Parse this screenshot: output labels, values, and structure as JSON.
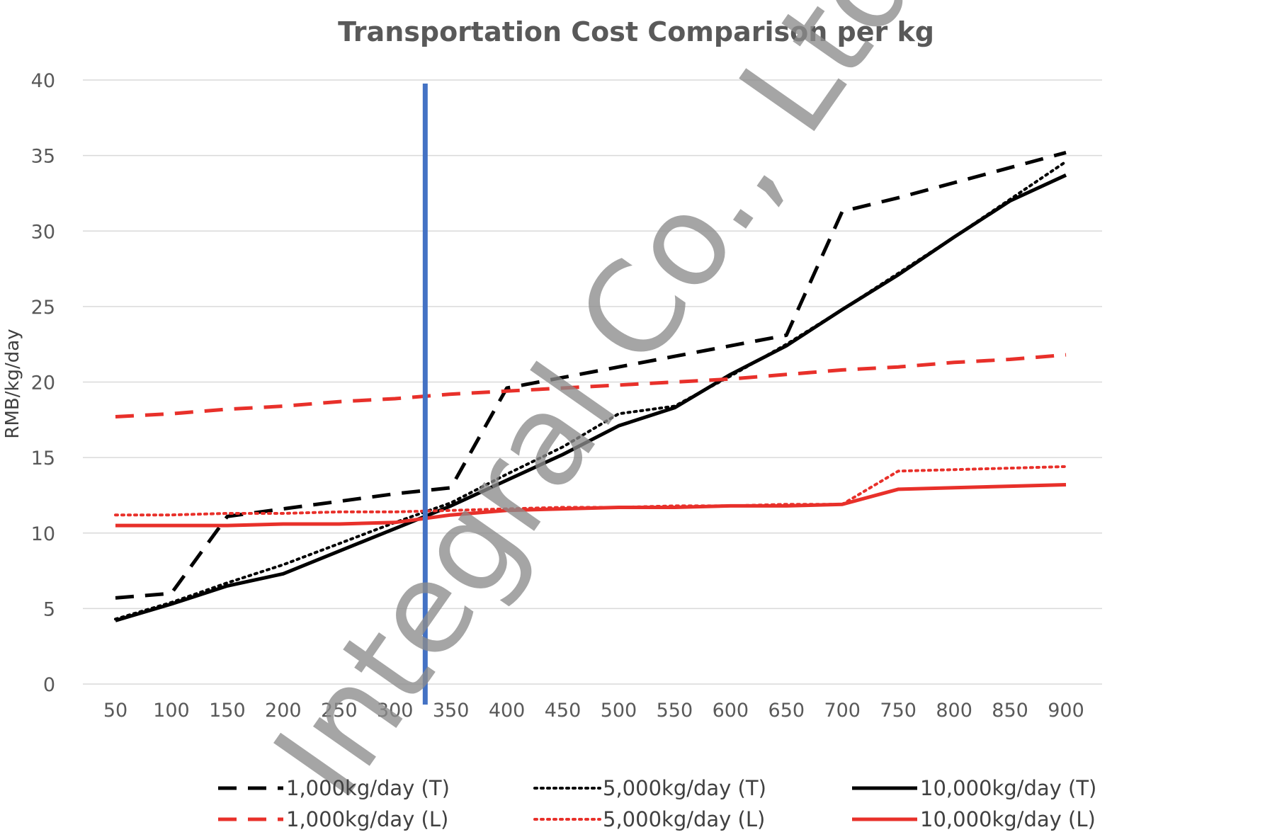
{
  "chart_data": {
    "type": "line",
    "title": "Transportation Cost Comparison per kg",
    "xlabel": "",
    "ylabel": "RMB/kg/day",
    "ylim": [
      0,
      40
    ],
    "yticks": [
      0,
      5,
      10,
      15,
      20,
      25,
      30,
      35,
      40
    ],
    "categories": [
      "50",
      "100",
      "150",
      "200",
      "250",
      "300",
      "350",
      "400",
      "450",
      "500",
      "550",
      "600",
      "650",
      "700",
      "750",
      "800",
      "850",
      "900"
    ],
    "grid": true,
    "legend_position": "bottom",
    "vertical_marker_x": 327,
    "vertical_marker_color": "#4472c4",
    "watermark": "Integral Co., Ltd.",
    "series": [
      {
        "name": "1,000kg/day (T)",
        "color": "#000000",
        "style": "dashed",
        "values": [
          5.7,
          6.0,
          11.1,
          11.6,
          12.1,
          12.6,
          13.0,
          19.6,
          20.3,
          21.0,
          21.7,
          22.4,
          23.1,
          31.3,
          32.2,
          33.2,
          34.2,
          35.2
        ]
      },
      {
        "name": "5,000kg/day (T)",
        "color": "#000000",
        "style": "dotted",
        "values": [
          4.3,
          5.4,
          6.7,
          7.9,
          9.3,
          10.7,
          12.0,
          13.9,
          15.7,
          17.9,
          18.4,
          20.4,
          22.5,
          24.8,
          27.2,
          29.6,
          32.1,
          34.6
        ]
      },
      {
        "name": "10,000kg/day (T)",
        "color": "#000000",
        "style": "solid",
        "values": [
          4.2,
          5.3,
          6.5,
          7.3,
          8.8,
          10.3,
          11.8,
          13.5,
          15.2,
          17.1,
          18.3,
          20.5,
          22.4,
          24.8,
          27.1,
          29.6,
          32.0,
          33.7
        ]
      },
      {
        "name": "1,000kg/day (L)",
        "color": "#e8302a",
        "style": "dashed",
        "values": [
          17.7,
          17.9,
          18.2,
          18.4,
          18.7,
          18.9,
          19.2,
          19.4,
          19.6,
          19.8,
          20.0,
          20.2,
          20.5,
          20.8,
          21.0,
          21.3,
          21.5,
          21.8
        ]
      },
      {
        "name": "5,000kg/day (L)",
        "color": "#e8302a",
        "style": "dotted",
        "values": [
          11.2,
          11.2,
          11.3,
          11.3,
          11.4,
          11.4,
          11.5,
          11.6,
          11.7,
          11.7,
          11.8,
          11.8,
          11.9,
          11.9,
          14.1,
          14.2,
          14.3,
          14.4
        ]
      },
      {
        "name": "10,000kg/day (L)",
        "color": "#e8302a",
        "style": "solid",
        "values": [
          10.5,
          10.5,
          10.5,
          10.6,
          10.6,
          10.7,
          11.2,
          11.5,
          11.6,
          11.7,
          11.7,
          11.8,
          11.8,
          11.9,
          12.9,
          13.0,
          13.1,
          13.2
        ]
      }
    ]
  }
}
